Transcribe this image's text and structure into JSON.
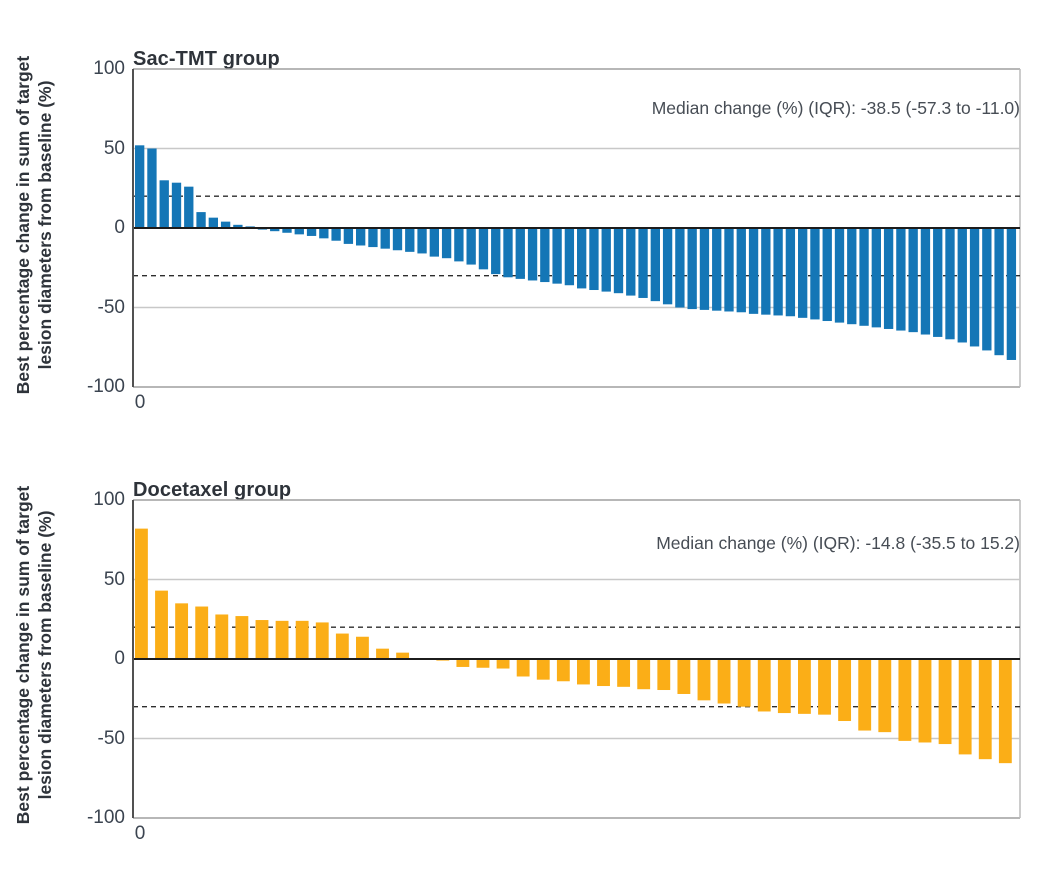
{
  "figure_name": "Waterfall plots of best percentage change in target lesion diameters",
  "accent_colors": {
    "sac_tmt_blue": "#1476B6",
    "docetaxel_orange": "#FBAE17"
  },
  "chart_data": [
    {
      "type": "bar",
      "title": "Sac-TMT group",
      "annotation": "Median change (%) (IQR): -38.5 (-57.3 to -11.0)",
      "ylabel_line1": "Best percentage change in sum of target",
      "ylabel_line2": "lesion diameters from baseline (%)",
      "x_origin_label": "0",
      "bar_color": "#1476B6",
      "ylim": [
        -100,
        100
      ],
      "yticks": [
        "100",
        "50",
        "0",
        "-50",
        "-100"
      ],
      "ytick_values": [
        100,
        50,
        0,
        -50,
        -100
      ],
      "gridlines_solid": [
        50,
        -50
      ],
      "reference_lines_dashed": [
        20,
        -30
      ],
      "legend_position": "none",
      "values": [
        52,
        50,
        30,
        28.5,
        26,
        10,
        6.5,
        4,
        2,
        1,
        -1,
        -2,
        -3,
        -4,
        -5,
        -6.5,
        -8,
        -10,
        -11,
        -12,
        -13,
        -14,
        -15,
        -16,
        -18,
        -19,
        -21,
        -23,
        -26,
        -29,
        -31,
        -32,
        -33,
        -34,
        -35,
        -36,
        -38,
        -39,
        -40,
        -41,
        -42.5,
        -44,
        -46,
        -48,
        -50,
        -51,
        -51.5,
        -52,
        -52.5,
        -53,
        -54,
        -54.5,
        -55,
        -55.5,
        -56.5,
        -57.5,
        -58.5,
        -59.5,
        -60.5,
        -61.5,
        -62.5,
        -63.5,
        -64.5,
        -65.5,
        -67,
        -68.5,
        -70,
        -72,
        -74.5,
        -77,
        -80,
        -83
      ]
    },
    {
      "type": "bar",
      "title": "Docetaxel group",
      "annotation": "Median change (%) (IQR): -14.8 (-35.5 to 15.2)",
      "ylabel_line1": "Best percentage change in sum of target",
      "ylabel_line2": "lesion diameters from baseline (%)",
      "x_origin_label": "0",
      "bar_color": "#FBAE17",
      "ylim": [
        -100,
        100
      ],
      "yticks": [
        "100",
        "50",
        "0",
        "-50",
        "-100"
      ],
      "ytick_values": [
        100,
        50,
        0,
        -50,
        -100
      ],
      "gridlines_solid": [
        50,
        -50
      ],
      "reference_lines_dashed": [
        20,
        -30
      ],
      "legend_position": "none",
      "values": [
        82,
        43,
        35,
        33,
        28,
        27,
        24.5,
        24,
        24,
        23,
        16,
        14,
        6.5,
        4,
        0.5,
        -1,
        -5,
        -5.5,
        -6,
        -11,
        -13,
        -14,
        -16,
        -17,
        -17.5,
        -19,
        -19.5,
        -22,
        -26,
        -28,
        -30,
        -33,
        -34,
        -34.5,
        -35,
        -39,
        -45,
        -46,
        -51.5,
        -52.5,
        -53.5,
        -60,
        -63,
        -65.5
      ]
    }
  ]
}
